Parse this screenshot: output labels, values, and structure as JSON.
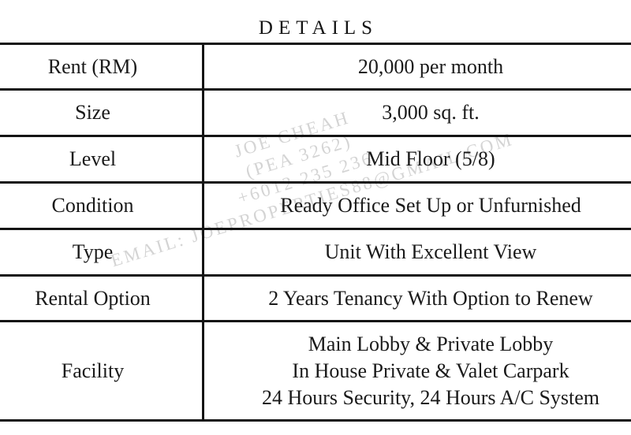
{
  "page": {
    "background": "#ffffff",
    "text_color": "#1a1a1a",
    "border_color": "#141414"
  },
  "title": "DETAILS",
  "table": {
    "rows": [
      {
        "label": "Rent (RM)",
        "value": "20,000 per month"
      },
      {
        "label": "Size",
        "value": "3,000 sq. ft."
      },
      {
        "label": "Level",
        "value": "Mid Floor (5/8)"
      },
      {
        "label": "Condition",
        "value": "Ready Office Set Up or Unfurnished"
      },
      {
        "label": "Type",
        "value": "Unit With Excellent View"
      },
      {
        "label": "Rental Option",
        "value": "2 Years Tenancy With Option to Renew"
      },
      {
        "label": "Facility",
        "value_lines": [
          "Main Lobby & Private Lobby",
          "In House Private & Valet Carpark",
          "24 Hours Security, 24 Hours A/C System"
        ]
      }
    ]
  },
  "watermark": {
    "color": "#d4d4d4",
    "lines": [
      "JOE CHEAH",
      "(PEA 3262)",
      "+6012 235 236",
      "EMAIL: JOEPROPERTIES88@GMAIL.COM"
    ]
  }
}
